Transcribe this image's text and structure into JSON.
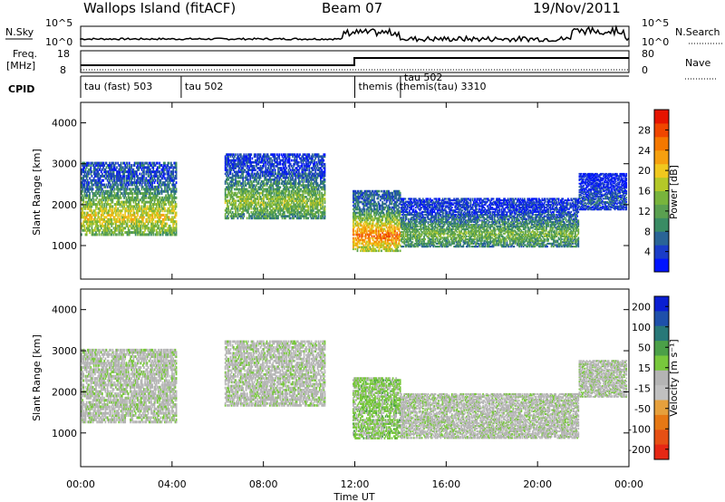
{
  "header": {
    "station": "Wallops Island (fitACF)",
    "beam": "Beam 07",
    "date": "19/Nov/2011"
  },
  "strips": {
    "nsky_label": "N.Sky",
    "nsky_ticks": [
      "10^5",
      "10^0"
    ],
    "nsearch_label": "N.Search",
    "nsearch_ticks": [
      "10^5",
      "10^0"
    ],
    "freq_label": "Freq.",
    "freq_unit": "[MHz]",
    "freq_ticks": [
      "18",
      "8"
    ],
    "nave_label": "Nave",
    "nave_ticks": [
      "80",
      "0"
    ],
    "cpid_label": "CPID"
  },
  "cpid_segments": [
    {
      "label": "tau (fast) 503",
      "start_h": 0,
      "end_h": 4.4
    },
    {
      "label": "tau 502",
      "start_h": 4.4,
      "end_h": 12.0
    },
    {
      "label": "themis (themis(tau) 3310",
      "start_h": 12.0,
      "end_h": 14.0
    },
    {
      "label": "tau 502",
      "start_h": 14.0,
      "end_h": 14.5
    }
  ],
  "time_axis": {
    "label": "Time UT",
    "ticks": [
      "00:00",
      "04:00",
      "08:00",
      "12:00",
      "16:00",
      "20:00",
      "00:00"
    ],
    "range_h": [
      0,
      24
    ]
  },
  "chart_data": [
    {
      "type": "heatmap",
      "title": "Power",
      "xlabel": "Time UT",
      "ylabel": "Slant Range [km]",
      "ylim": [
        180,
        4500
      ],
      "yticks": [
        1000,
        2000,
        3000,
        4000
      ],
      "colorbar_label": "Power [dB]",
      "colorbar_ticks": [
        4,
        8,
        12,
        16,
        20,
        24,
        28
      ],
      "colorscale": [
        "#0014ff",
        "#1a3cc8",
        "#2a6496",
        "#3a8c64",
        "#5aa050",
        "#78b43c",
        "#b4c828",
        "#f0c81e",
        "#f5a00f",
        "#f57800",
        "#f04600",
        "#e61400"
      ],
      "echo_bands": [
        {
          "t": [
            0.0,
            4.2
          ],
          "r": [
            1300,
            3100
          ],
          "p": 20
        },
        {
          "t": [
            6.3,
            10.7
          ],
          "r": [
            1700,
            3300
          ],
          "p": 16
        },
        {
          "t": [
            11.9,
            14.0
          ],
          "r": [
            900,
            2400
          ],
          "p": 26
        },
        {
          "t": [
            14.0,
            21.8
          ],
          "r": [
            1000,
            2200
          ],
          "p": 14
        },
        {
          "t": [
            21.8,
            23.9
          ],
          "r": [
            1900,
            2800
          ],
          "p": 6
        }
      ]
    },
    {
      "type": "heatmap",
      "title": "Velocity",
      "xlabel": "Time UT",
      "ylabel": "Slant Range [km]",
      "ylim": [
        180,
        4500
      ],
      "yticks": [
        1000,
        2000,
        3000,
        4000
      ],
      "colorbar_label": "Velocity [m s⁻¹]",
      "colorbar_ticks": [
        200,
        100,
        50,
        15,
        -15,
        -50,
        -100,
        -200
      ],
      "colorscale": [
        "#0a1ed2",
        "#1e50aa",
        "#287878",
        "#4ba048",
        "#78c83c",
        "#b4b4b4",
        "#c0c0c0",
        "#e6a03c",
        "#e67814",
        "#e65014",
        "#e62814"
      ],
      "echo_bands": [
        {
          "t": [
            0.0,
            4.2
          ],
          "r": [
            1300,
            3100
          ],
          "v": 0
        },
        {
          "t": [
            6.3,
            10.7
          ],
          "r": [
            1700,
            3300
          ],
          "v": 0
        },
        {
          "t": [
            11.9,
            14.0
          ],
          "r": [
            900,
            2400
          ],
          "v": 30
        },
        {
          "t": [
            14.0,
            21.8
          ],
          "r": [
            900,
            2000
          ],
          "v": 0
        },
        {
          "t": [
            21.8,
            23.9
          ],
          "r": [
            1900,
            2800
          ],
          "v": 0
        }
      ]
    }
  ]
}
